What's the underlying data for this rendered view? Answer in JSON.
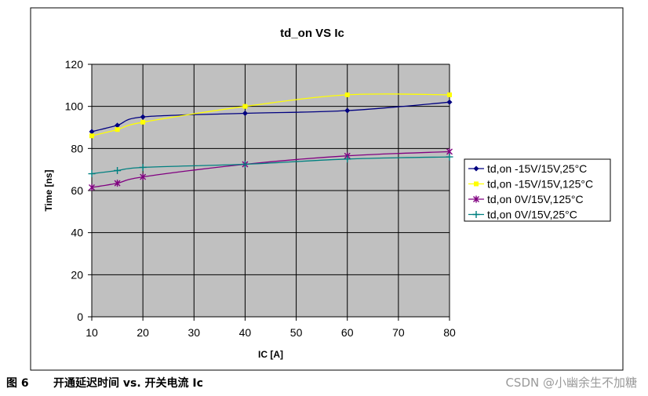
{
  "caption": {
    "figure": "图 6",
    "text": "开通延迟时间 vs. 开关电流 Ic"
  },
  "watermark": "CSDN @小幽余生不加糖",
  "chart_data": {
    "type": "line",
    "title": "td_on VS Ic",
    "xlabel": "IC [A]",
    "ylabel": "Time [ns]",
    "xlim": [
      10,
      80
    ],
    "ylim": [
      0,
      120
    ],
    "xticks": [
      10,
      20,
      30,
      40,
      50,
      60,
      70,
      80
    ],
    "yticks": [
      0,
      20,
      40,
      60,
      80,
      100,
      120
    ],
    "grid": true,
    "legend_position": "right",
    "plot_background": "#c0c0c0",
    "series": [
      {
        "name": "td,on -15V/15V,25°C",
        "color": "#000080",
        "marker": "diamond",
        "x": [
          10,
          15,
          20,
          40,
          60,
          80
        ],
        "y": [
          88,
          91,
          95,
          96.7,
          98,
          102
        ]
      },
      {
        "name": "td,on -15V/15V,125°C",
        "color": "#ffff00",
        "marker": "square",
        "x": [
          10,
          15,
          20,
          40,
          60,
          80
        ],
        "y": [
          86,
          89,
          92.5,
          100,
          105.5,
          105.5
        ]
      },
      {
        "name": "td,on 0V/15V,125°C",
        "color": "#800080",
        "marker": "star",
        "x": [
          10,
          15,
          20,
          40,
          60,
          80
        ],
        "y": [
          61.5,
          63.5,
          66.5,
          72.5,
          76.5,
          78.5
        ]
      },
      {
        "name": "td,on 0V/15V,25°C",
        "color": "#008080",
        "marker": "plus",
        "x": [
          10,
          15,
          20,
          40,
          60,
          80
        ],
        "y": [
          68,
          69.5,
          71,
          72.5,
          75,
          76
        ]
      }
    ]
  }
}
